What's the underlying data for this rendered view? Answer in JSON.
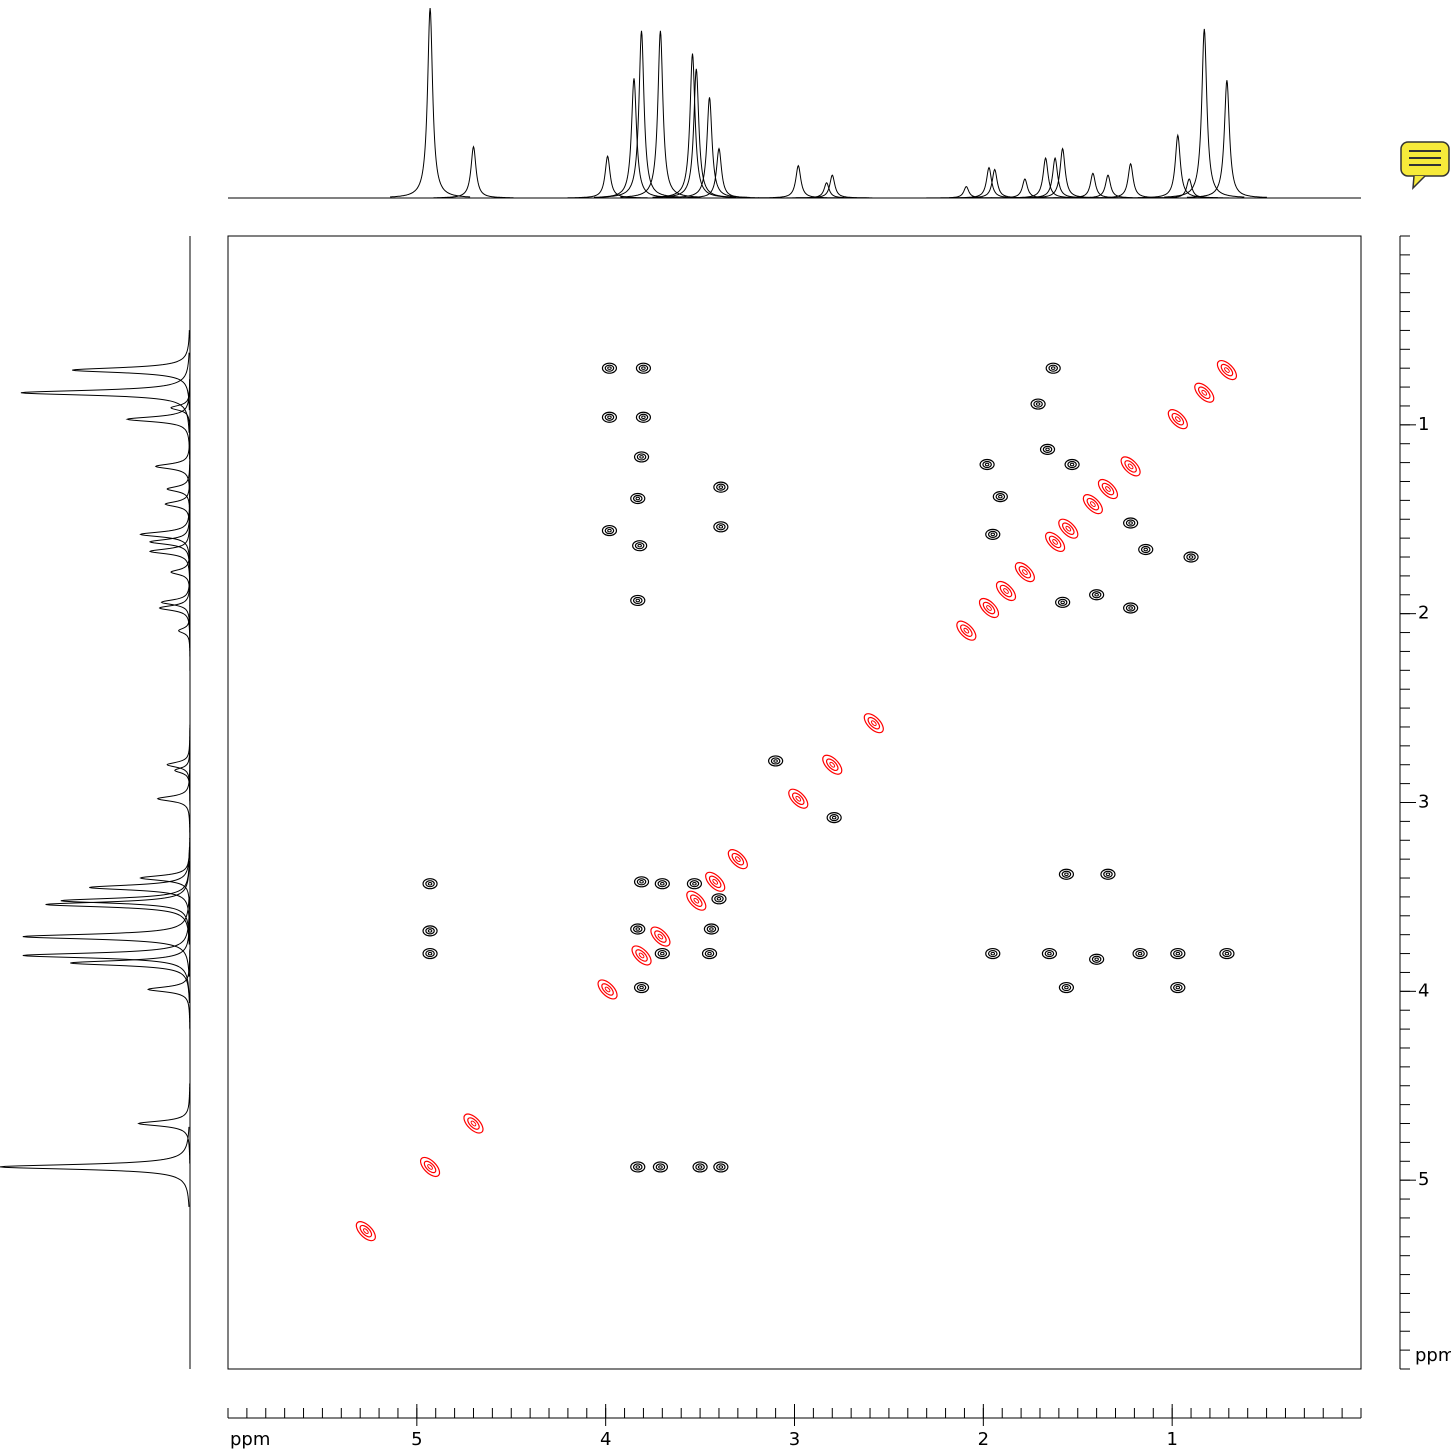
{
  "chart_data": {
    "type": "nmr2d",
    "xlabel": "ppm",
    "ylabel": "ppm",
    "xlim": [
      6,
      0
    ],
    "ylim": [
      0,
      6
    ],
    "xticks": [
      5,
      4,
      3,
      2,
      1
    ],
    "yticks": [
      1,
      2,
      3,
      4,
      5
    ],
    "xminorticks": [
      0,
      0.1,
      0.2,
      0.3,
      0.4,
      0.5,
      0.6,
      0.7,
      0.8,
      0.9,
      1,
      1.1,
      1.2,
      1.3,
      1.4,
      1.5,
      1.6,
      1.7,
      1.8,
      1.9,
      2,
      2.1,
      2.2,
      2.3,
      2.4,
      2.5,
      2.6,
      2.7,
      2.8,
      2.9,
      3,
      3.1,
      3.2,
      3.3,
      3.4,
      3.5,
      3.6,
      3.7,
      3.8,
      3.9,
      4,
      4.1,
      4.2,
      4.3,
      4.4,
      4.5,
      4.6,
      4.7,
      4.8,
      4.9,
      5,
      5.1,
      5.2,
      5.3,
      5.4,
      5.5,
      5.6,
      5.7,
      5.8,
      5.9,
      6
    ],
    "yminorticks": [
      0,
      0.1,
      0.2,
      0.3,
      0.4,
      0.5,
      0.6,
      0.7,
      0.8,
      0.9,
      1,
      1.1,
      1.2,
      1.3,
      1.4,
      1.5,
      1.6,
      1.7,
      1.8,
      1.9,
      2,
      2.1,
      2.2,
      2.3,
      2.4,
      2.5,
      2.6,
      2.7,
      2.8,
      2.9,
      3,
      3.1,
      3.2,
      3.3,
      3.4,
      3.5,
      3.6,
      3.7,
      3.8,
      3.9,
      4,
      4.1,
      4.2,
      4.3,
      4.4,
      4.5,
      4.6,
      4.7,
      4.8,
      4.9,
      5,
      5.1,
      5.2,
      5.3,
      5.4,
      5.5,
      5.6,
      5.7,
      5.8,
      5.9,
      6
    ],
    "projection": {
      "color": "#000000",
      "x": [
        4.93,
        4.7,
        3.99,
        3.85,
        3.81,
        3.71,
        3.54,
        3.52,
        3.45,
        3.4,
        2.98,
        2.83,
        2.8,
        2.09,
        1.97,
        1.94,
        1.78,
        1.67,
        1.62,
        1.58,
        1.42,
        1.34,
        1.22,
        0.97,
        0.91,
        0.83,
        0.71
      ],
      "values": [
        100,
        27,
        22,
        63,
        88,
        88,
        76,
        68,
        53,
        26,
        17,
        8,
        12,
        6,
        16,
        15,
        10,
        21,
        21,
        26,
        13,
        12,
        18,
        33,
        10,
        89,
        62
      ]
    },
    "series": [
      {
        "color": "#ff0000",
        "x": [
          5.27,
          4.93,
          4.7,
          3.99,
          3.81,
          3.71,
          3.52,
          3.42,
          3.3,
          2.98,
          2.8,
          2.58,
          2.09,
          1.97,
          1.88,
          1.78,
          1.62,
          1.55,
          1.42,
          1.34,
          1.22,
          0.97,
          0.83,
          0.71
        ],
        "y": [
          5.27,
          4.93,
          4.7,
          3.99,
          3.81,
          3.71,
          3.52,
          3.42,
          3.3,
          2.98,
          2.8,
          2.58,
          2.09,
          1.97,
          1.88,
          1.78,
          1.62,
          1.55,
          1.42,
          1.34,
          1.22,
          0.97,
          0.83,
          0.71
        ]
      },
      {
        "color": "#000000",
        "x": [
          3.98,
          3.8,
          3.98,
          3.8,
          3.81,
          3.83,
          3.39,
          3.98,
          3.39,
          3.82,
          3.83,
          1.63,
          1.71,
          1.66,
          1.53,
          1.98,
          1.91,
          1.95,
          1.22,
          1.14,
          0.9,
          1.58,
          1.4,
          1.22,
          3.1,
          2.79,
          1.56,
          1.34,
          4.93,
          4.93,
          4.93,
          1.95,
          1.65,
          1.4,
          1.17,
          0.97,
          0.71,
          1.56,
          0.97,
          3.83,
          3.71,
          3.5,
          3.39,
          3.81,
          3.7,
          3.83,
          3.7,
          3.45,
          3.44,
          3.81,
          3.53,
          3.4
        ],
        "y": [
          0.7,
          0.7,
          0.96,
          0.96,
          1.17,
          1.39,
          1.33,
          1.56,
          1.54,
          1.64,
          1.93,
          0.7,
          0.89,
          1.13,
          1.21,
          1.21,
          1.38,
          1.58,
          1.52,
          1.66,
          1.7,
          1.94,
          1.9,
          1.97,
          2.78,
          3.08,
          3.38,
          3.38,
          3.43,
          3.68,
          3.8,
          3.8,
          3.8,
          3.83,
          3.8,
          3.8,
          3.8,
          3.98,
          3.98,
          4.93,
          4.93,
          4.93,
          4.93,
          3.42,
          3.43,
          3.67,
          3.8,
          3.8,
          3.67,
          3.98,
          3.43,
          3.51
        ]
      }
    ]
  }
}
